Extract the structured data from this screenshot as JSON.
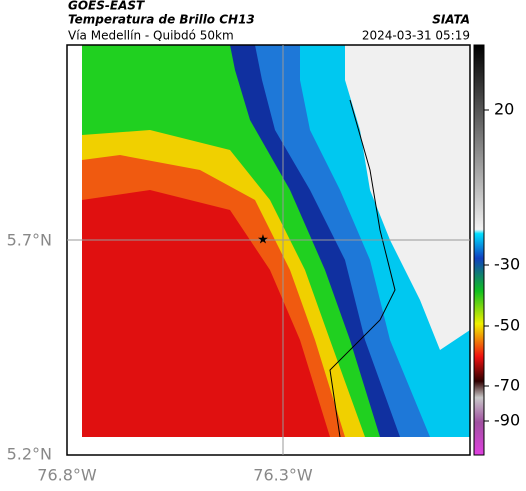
{
  "header": {
    "satellite": "GOES-EAST",
    "title": "Temperatura de Brillo CH13",
    "source": "SIATA",
    "subtitle": "Vía Medellín - Quibdó 50km",
    "datetime": "2024-03-31 05:19"
  },
  "axes": {
    "y_labels": [
      "5.7°N",
      "5.2°N"
    ],
    "x_labels": [
      "76.8°W",
      "76.3°W"
    ]
  },
  "colorbar": {
    "labels": [
      "20",
      "-30",
      "-50",
      "-70",
      "-90"
    ]
  }
}
